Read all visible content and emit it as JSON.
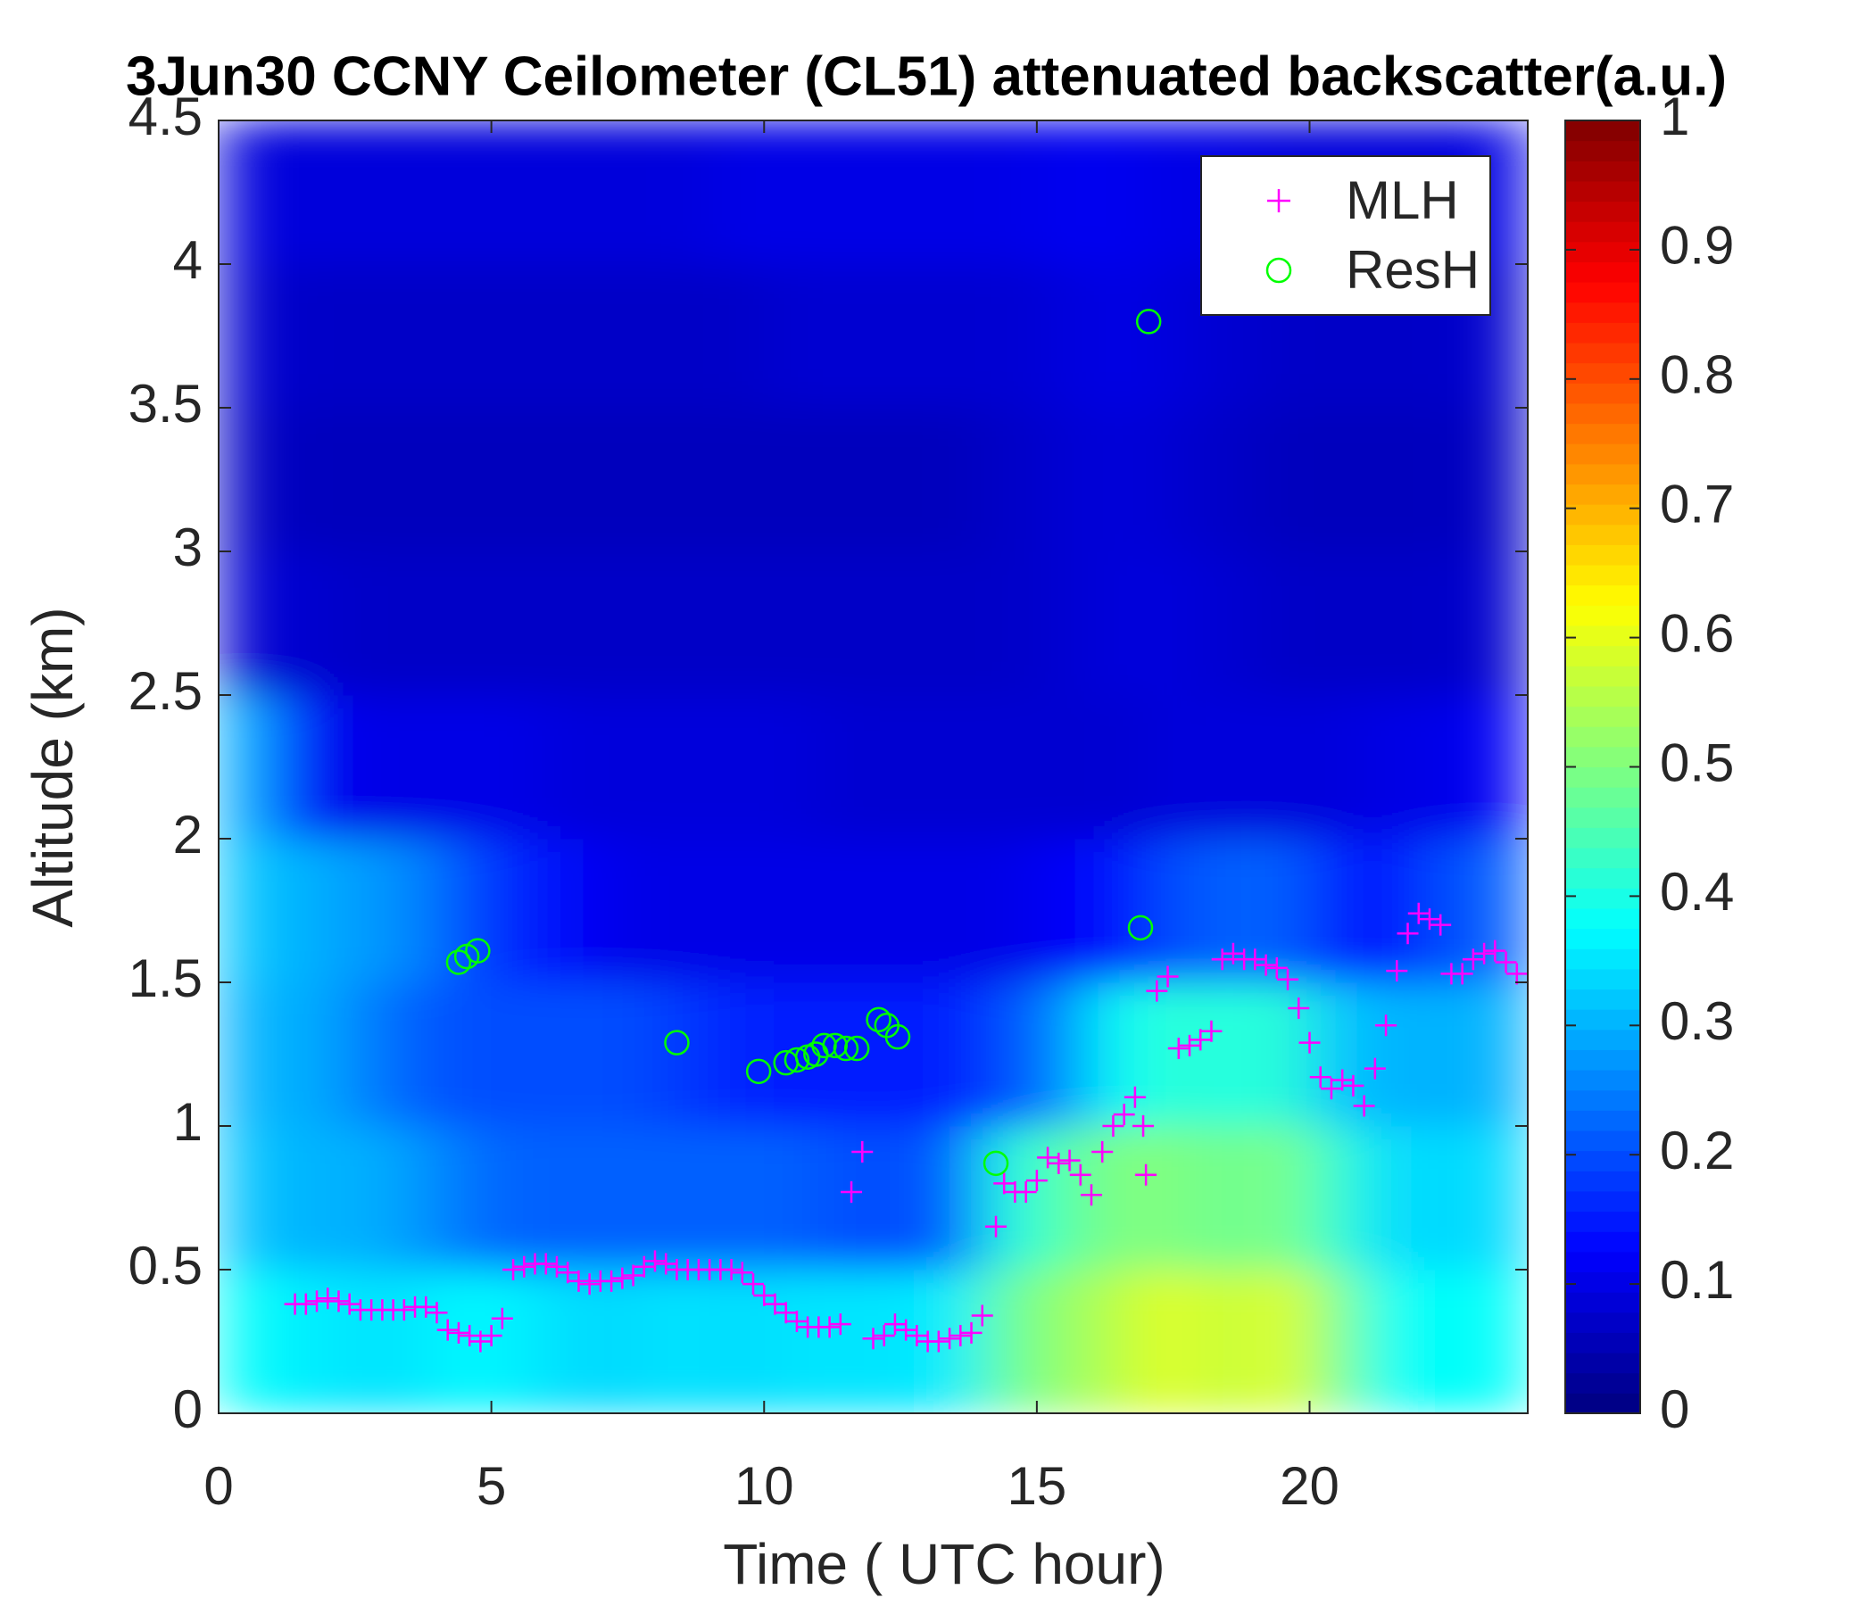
{
  "chart_data": {
    "type": "heatmap",
    "title": "3Jun30 CCNY Ceilometer (CL51) attenuated backscatter(a.u.)",
    "xlabel": "Time ( UTC hour)",
    "ylabel": "Altitude (km)",
    "xlim": [
      0,
      24
    ],
    "ylim": [
      0,
      4.5
    ],
    "xticks": [
      0,
      5,
      10,
      15,
      20
    ],
    "yticks": [
      0,
      0.5,
      1,
      1.5,
      2,
      2.5,
      3,
      3.5,
      4,
      4.5
    ],
    "colormap": "jet",
    "clim": [
      0,
      1
    ],
    "cticks": [
      0,
      0.1,
      0.2,
      0.3,
      0.4,
      0.5,
      0.6,
      0.7,
      0.8,
      0.9,
      1
    ],
    "z": [
      [
        0.38,
        0.36,
        0.35,
        0.35,
        0.37,
        0.36,
        0.34,
        0.34,
        0.35,
        0.34,
        0.35,
        0.35,
        0.35,
        0.36,
        0.48,
        0.52,
        0.56,
        0.6,
        0.56,
        0.6,
        0.5,
        0.38,
        0.38,
        0.38
      ],
      [
        0.32,
        0.3,
        0.3,
        0.28,
        0.24,
        0.22,
        0.22,
        0.22,
        0.22,
        0.22,
        0.22,
        0.2,
        0.2,
        0.22,
        0.4,
        0.46,
        0.5,
        0.5,
        0.48,
        0.5,
        0.42,
        0.34,
        0.34,
        0.34
      ],
      [
        0.3,
        0.3,
        0.26,
        0.22,
        0.2,
        0.2,
        0.2,
        0.2,
        0.18,
        0.16,
        0.15,
        0.15,
        0.15,
        0.15,
        0.2,
        0.26,
        0.38,
        0.42,
        0.4,
        0.42,
        0.32,
        0.3,
        0.3,
        0.3
      ],
      [
        0.32,
        0.3,
        0.28,
        0.26,
        0.2,
        0.16,
        0.12,
        0.1,
        0.1,
        0.1,
        0.1,
        0.1,
        0.1,
        0.1,
        0.1,
        0.12,
        0.14,
        0.2,
        0.22,
        0.22,
        0.16,
        0.14,
        0.2,
        0.22
      ],
      [
        0.3,
        0.14,
        0.1,
        0.1,
        0.1,
        0.1,
        0.09,
        0.09,
        0.09,
        0.09,
        0.09,
        0.08,
        0.08,
        0.08,
        0.08,
        0.08,
        0.08,
        0.09,
        0.09,
        0.09,
        0.09,
        0.1,
        0.1,
        0.12
      ],
      [
        0.08,
        0.08,
        0.07,
        0.07,
        0.07,
        0.07,
        0.07,
        0.07,
        0.07,
        0.07,
        0.07,
        0.07,
        0.07,
        0.07,
        0.07,
        0.08,
        0.09,
        0.09,
        0.08,
        0.07,
        0.07,
        0.07,
        0.07,
        0.08
      ],
      [
        0.07,
        0.06,
        0.06,
        0.06,
        0.06,
        0.06,
        0.06,
        0.06,
        0.06,
        0.06,
        0.06,
        0.06,
        0.06,
        0.06,
        0.07,
        0.08,
        0.09,
        0.08,
        0.07,
        0.06,
        0.06,
        0.06,
        0.06,
        0.07
      ],
      [
        0.08,
        0.07,
        0.07,
        0.07,
        0.07,
        0.07,
        0.07,
        0.07,
        0.07,
        0.07,
        0.08,
        0.08,
        0.08,
        0.08,
        0.08,
        0.09,
        0.1,
        0.09,
        0.08,
        0.07,
        0.07,
        0.07,
        0.07,
        0.08
      ],
      [
        0.09,
        0.09,
        0.09,
        0.09,
        0.09,
        0.09,
        0.09,
        0.09,
        0.09,
        0.1,
        0.1,
        0.1,
        0.1,
        0.1,
        0.1,
        0.11,
        0.11,
        0.1,
        0.1,
        0.09,
        0.09,
        0.09,
        0.09,
        0.1
      ]
    ],
    "legend": "upper right",
    "series": [
      {
        "name": "MLH",
        "color": "#ff00ff",
        "marker": "+",
        "x": [
          1.4,
          1.6,
          1.8,
          2.0,
          2.2,
          2.4,
          2.6,
          2.8,
          3.0,
          3.2,
          3.4,
          3.6,
          3.8,
          4.0,
          4.2,
          4.4,
          4.6,
          4.8,
          5.0,
          5.2,
          5.4,
          5.6,
          5.8,
          6.0,
          6.2,
          6.4,
          6.6,
          6.8,
          7.0,
          7.2,
          7.4,
          7.6,
          7.8,
          8.0,
          8.2,
          8.4,
          8.6,
          8.8,
          9.0,
          9.2,
          9.4,
          9.6,
          9.8,
          10.0,
          10.2,
          10.4,
          10.6,
          10.8,
          11.0,
          11.2,
          11.4,
          11.6,
          11.8,
          12.0,
          12.2,
          12.4,
          12.6,
          12.8,
          13.0,
          13.2,
          13.4,
          13.6,
          13.8,
          14.0,
          14.25,
          14.4,
          14.6,
          14.8,
          15.0,
          15.2,
          15.4,
          15.6,
          15.8,
          16.0,
          16.2,
          16.4,
          16.6,
          16.8,
          16.95,
          17.0,
          17.2,
          17.4,
          17.6,
          17.8,
          18.0,
          18.2,
          18.4,
          18.6,
          18.8,
          19.0,
          19.2,
          19.4,
          19.6,
          19.8,
          20.0,
          20.2,
          20.4,
          20.6,
          20.8,
          21.0,
          21.2,
          21.4,
          21.6,
          21.8,
          22.0,
          22.2,
          22.4,
          22.6,
          22.8,
          23.0,
          23.2,
          23.4,
          23.6,
          23.8
        ],
        "values": [
          0.38,
          0.38,
          0.39,
          0.4,
          0.39,
          0.38,
          0.36,
          0.36,
          0.36,
          0.36,
          0.36,
          0.37,
          0.37,
          0.35,
          0.29,
          0.28,
          0.27,
          0.25,
          0.27,
          0.33,
          0.5,
          0.51,
          0.52,
          0.52,
          0.51,
          0.49,
          0.46,
          0.45,
          0.46,
          0.46,
          0.47,
          0.48,
          0.51,
          0.53,
          0.52,
          0.5,
          0.5,
          0.5,
          0.5,
          0.5,
          0.5,
          0.49,
          0.45,
          0.41,
          0.38,
          0.35,
          0.32,
          0.3,
          0.3,
          0.3,
          0.31,
          0.77,
          0.91,
          0.26,
          0.27,
          0.31,
          0.29,
          0.27,
          0.25,
          0.25,
          0.26,
          0.27,
          0.28,
          0.34,
          0.65,
          0.8,
          0.77,
          0.77,
          0.81,
          0.89,
          0.87,
          0.88,
          0.83,
          0.76,
          0.91,
          1.0,
          1.04,
          1.1,
          1.0,
          0.83,
          1.47,
          1.52,
          1.27,
          1.28,
          1.3,
          1.33,
          1.58,
          1.6,
          1.58,
          1.58,
          1.56,
          1.55,
          1.51,
          1.41,
          1.29,
          1.17,
          1.13,
          1.16,
          1.14,
          1.07,
          1.2,
          1.35,
          1.54,
          1.67,
          1.74,
          1.72,
          1.7,
          1.53,
          1.53,
          1.58,
          1.6,
          1.61,
          1.57,
          1.53
        ]
      },
      {
        "name": "ResH",
        "color": "#00ff00",
        "marker": "o",
        "x": [
          4.4,
          4.55,
          4.75,
          8.4,
          9.9,
          10.4,
          10.6,
          10.8,
          10.95,
          11.1,
          11.3,
          11.5,
          11.7,
          12.1,
          12.25,
          12.45,
          14.25,
          16.9,
          17.05
        ],
        "values": [
          1.57,
          1.59,
          1.61,
          1.29,
          1.19,
          1.22,
          1.23,
          1.24,
          1.25,
          1.28,
          1.28,
          1.27,
          1.27,
          1.37,
          1.35,
          1.31,
          0.87,
          1.69,
          3.8
        ]
      }
    ]
  }
}
